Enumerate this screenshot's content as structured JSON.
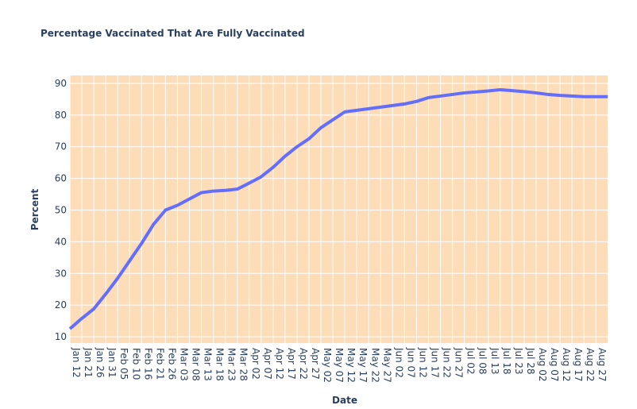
{
  "chart_data": {
    "type": "line",
    "title": "Percentage Vaccinated That Are Fully Vaccinated",
    "x_label": "Date",
    "y_label": "Percent",
    "categories": [
      "Jan 12",
      "Jan 21",
      "Jan 26",
      "Jan 31",
      "Feb 05",
      "Feb 10",
      "Feb 16",
      "Feb 21",
      "Feb 26",
      "Mar 03",
      "Mar 08",
      "Mar 13",
      "Mar 18",
      "Mar 23",
      "Mar 28",
      "Apr 02",
      "Apr 07",
      "Apr 12",
      "Apr 17",
      "Apr 22",
      "Apr 27",
      "May 02",
      "May 07",
      "May 12",
      "May 17",
      "May 22",
      "May 27",
      "Jun 02",
      "Jun 07",
      "Jun 12",
      "Jun 17",
      "Jun 22",
      "Jun 27",
      "Jul 02",
      "Jul 08",
      "Jul 13",
      "Jul 18",
      "Jul 23",
      "Jul 28",
      "Aug 02",
      "Aug 07",
      "Aug 12",
      "Aug 17",
      "Aug 22",
      "Aug 27",
      null
    ],
    "series": [
      {
        "name": "Percent",
        "color": "#636efa",
        "values": [
          12.5,
          15.8,
          18.8,
          23.5,
          28.5,
          34,
          39.5,
          45.5,
          50,
          51.5,
          53.5,
          55.5,
          56,
          56.2,
          56.6,
          58.5,
          60.5,
          63.5,
          67,
          70,
          72.5,
          76,
          78.5,
          81,
          81.5,
          82,
          82.5,
          83,
          83.5,
          84.3,
          85.5,
          86,
          86.5,
          87,
          87.3,
          87.6,
          88,
          87.7,
          87.4,
          87,
          86.5,
          86.2,
          86,
          85.8,
          85.8,
          85.8
        ]
      }
    ],
    "ylim": [
      8,
      92.5
    ],
    "yticks": [
      10,
      20,
      30,
      40,
      50,
      60,
      70,
      80,
      90
    ],
    "grid": true,
    "plot_bgcolor": "#fddcb8"
  }
}
